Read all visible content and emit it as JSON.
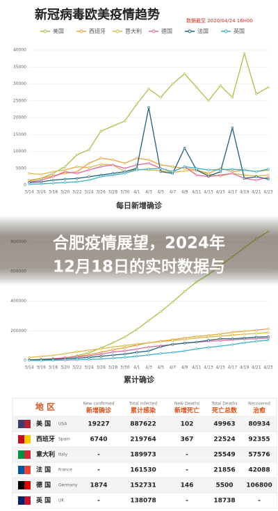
{
  "chart_data": [
    {
      "type": "line",
      "title": "新冠病毒欧美疫情趋势",
      "subtitle": "数据截至 2020/04/24 16H00",
      "caption": "每日新增确诊",
      "categories": [
        "3/14",
        "3/16",
        "3/18",
        "3/20",
        "3/22",
        "3/24",
        "3/26",
        "3/28",
        "3/30",
        "4/1",
        "4/3",
        "4/5",
        "4/7",
        "4/9",
        "4/11",
        "4/13",
        "4/15",
        "4/17",
        "4/19",
        "4/21",
        "4/23"
      ],
      "ylim": [
        0,
        40000
      ],
      "yticks": [
        0,
        5000,
        10000,
        15000,
        20000,
        25000,
        30000,
        35000,
        40000
      ],
      "grid": true,
      "series": [
        {
          "name": "美国",
          "color": "#a9bf48",
          "values": [
            1200,
            2000,
            3500,
            5500,
            9000,
            10500,
            16000,
            17500,
            19000,
            24000,
            28500,
            26000,
            30000,
            33000,
            29000,
            25000,
            29500,
            26000,
            39000,
            27000,
            29000
          ]
        },
        {
          "name": "西班牙",
          "color": "#e8a23a",
          "values": [
            1500,
            2000,
            2800,
            3500,
            4000,
            6500,
            8000,
            7500,
            6500,
            8000,
            7500,
            6000,
            5500,
            5000,
            4500,
            3500,
            5000,
            4000,
            4500,
            4000,
            4500
          ]
        },
        {
          "name": "意大利",
          "color": "#d9b94c",
          "values": [
            3500,
            3200,
            4000,
            4500,
            5500,
            5200,
            6200,
            6000,
            4000,
            4700,
            4500,
            4300,
            3800,
            4200,
            4500,
            3200,
            2700,
            3500,
            3000,
            2700,
            3000
          ]
        },
        {
          "name": "德国",
          "color": "#e06a9a",
          "values": [
            900,
            1500,
            2500,
            4000,
            3500,
            4500,
            5500,
            6000,
            5000,
            6000,
            6500,
            5000,
            4000,
            5500,
            3000,
            2500,
            3000,
            3500,
            2000,
            1500,
            2300
          ]
        },
        {
          "name": "法国",
          "color": "#1f5f7a",
          "values": [
            800,
            1000,
            1500,
            1800,
            2000,
            2500,
            3000,
            3500,
            4000,
            5000,
            23000,
            4000,
            3500,
            11000,
            4500,
            2700,
            4000,
            17000,
            2000,
            2500,
            1800
          ]
        },
        {
          "name": "英国",
          "color": "#3aaec4",
          "values": [
            300,
            400,
            600,
            800,
            1000,
            1500,
            2500,
            3000,
            3500,
            4500,
            4800,
            5000,
            4000,
            5500,
            5000,
            4500,
            4600,
            4700,
            4500,
            4000,
            4800
          ]
        }
      ]
    },
    {
      "type": "line",
      "caption": "累计确诊",
      "categories": [
        "3/14",
        "3/16",
        "3/18",
        "3/20",
        "3/22",
        "3/24",
        "3/26",
        "3/28",
        "3/30",
        "4/1",
        "4/3",
        "4/5",
        "4/7",
        "4/9",
        "4/11",
        "4/13",
        "4/15",
        "4/17",
        "4/19",
        "4/21",
        "4/23"
      ],
      "ylim": [
        0,
        900000
      ],
      "yticks": [
        0,
        200000,
        400000,
        600000,
        800000
      ],
      "grid": true,
      "series": [
        {
          "name": "美国",
          "color": "#a9bf48",
          "values": [
            2700,
            4500,
            9000,
            19000,
            33000,
            53000,
            85000,
            120000,
            160000,
            210000,
            270000,
            330000,
            395000,
            465000,
            530000,
            580000,
            640000,
            700000,
            760000,
            820000,
            870000
          ]
        },
        {
          "name": "西班牙",
          "color": "#e8a23a",
          "values": [
            6000,
            10000,
            14000,
            20000,
            28000,
            40000,
            56000,
            73000,
            87000,
            104000,
            120000,
            131000,
            141000,
            153000,
            163000,
            170000,
            180000,
            191000,
            198000,
            205000,
            214000
          ]
        },
        {
          "name": "意大利",
          "color": "#d9b94c",
          "values": [
            21000,
            28000,
            35000,
            47000,
            60000,
            70000,
            80000,
            92000,
            101000,
            111000,
            120000,
            128000,
            135000,
            143000,
            152000,
            159000,
            165000,
            172000,
            178000,
            183000,
            189000
          ]
        },
        {
          "name": "德国",
          "color": "#e06a9a",
          "values": [
            4500,
            7000,
            12000,
            20000,
            25000,
            33000,
            43000,
            58000,
            66000,
            78000,
            92000,
            100000,
            108000,
            118000,
            124000,
            130000,
            135000,
            140000,
            144000,
            147000,
            152000
          ]
        },
        {
          "name": "法国",
          "color": "#1f5f7a",
          "values": [
            4500,
            6600,
            9100,
            12600,
            16000,
            22000,
            29000,
            37000,
            44000,
            56000,
            65000,
            93000,
            110000,
            118000,
            125000,
            137000,
            147000,
            147000,
            152000,
            158000,
            161000
          ]
        },
        {
          "name": "英国",
          "color": "#3aaec4",
          "values": [
            1100,
            1500,
            2600,
            4000,
            5700,
            8000,
            11000,
            17000,
            22000,
            29000,
            38000,
            48000,
            55000,
            65000,
            79000,
            89000,
            98000,
            108000,
            120000,
            130000,
            138000
          ]
        }
      ]
    }
  ],
  "headline": [
    "合肥疫情展望，2024年",
    "12月18日的实时数据与"
  ],
  "table": {
    "columns": [
      {
        "zh": "地 区"
      },
      {
        "en": "New confirmed",
        "zh": "新增确诊"
      },
      {
        "en": "Total infected",
        "zh": "累计感染"
      },
      {
        "en": "New Deaths",
        "zh": "新增死亡"
      },
      {
        "en": "Total Deaths",
        "zh": "死亡总数"
      },
      {
        "en": "Recovered",
        "zh": "治愈"
      }
    ],
    "rows": [
      [
        {
          "zh": "美 国",
          "en": "USA"
        },
        "19227",
        "887622",
        "102",
        "49963",
        "80934"
      ],
      [
        {
          "zh": "西班牙",
          "en": "Spain"
        },
        "6740",
        "219764",
        "367",
        "22524",
        "92355"
      ],
      [
        {
          "zh": "意大利",
          "en": "Italy"
        },
        "-",
        "189973",
        "-",
        "25549",
        "57576"
      ],
      [
        {
          "zh": "法 国",
          "en": "France"
        },
        "-",
        "161530",
        "-",
        "21856",
        "42088"
      ],
      [
        {
          "zh": "德 国",
          "en": "Germany"
        },
        "1874",
        "152731",
        "146",
        "5500",
        "106800"
      ],
      [
        {
          "zh": "英 国",
          "en": "UK"
        },
        "-",
        "138078",
        "-",
        "18738",
        "-"
      ]
    ]
  }
}
